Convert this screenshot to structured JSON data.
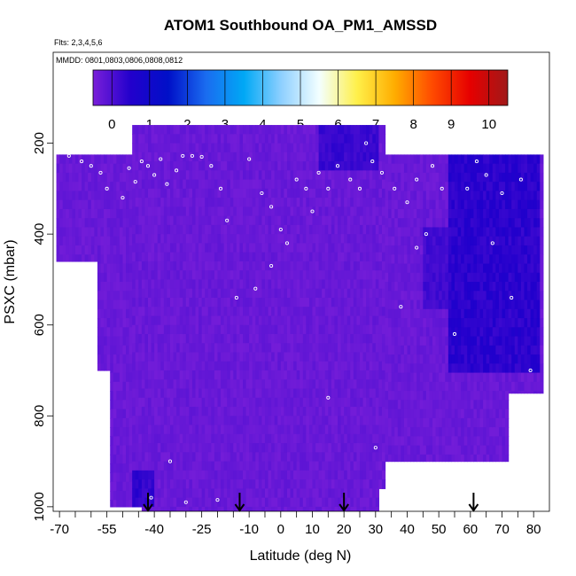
{
  "chart_data": {
    "type": "heatmap",
    "title": "ATOM1 Southbound OA_PM1_AMSSD",
    "subtitle_flights": "Flts: 2,3,4,5,6",
    "subtitle_dates": "MMDD: 0801,0803,0806,0808,0812",
    "xlabel": "Latitude (deg N)",
    "ylabel": "PSXC (mbar)",
    "xlim": [
      -72,
      85
    ],
    "ylim": [
      1010,
      0
    ],
    "x_ticks": [
      -70,
      -55,
      -40,
      -25,
      -10,
      0,
      10,
      20,
      30,
      40,
      50,
      60,
      70,
      80
    ],
    "x_tick_labels": [
      "-70",
      "-55",
      "-40",
      "-25",
      "-10",
      "0",
      "10",
      "20",
      "30",
      "40",
      "50",
      "60",
      "70",
      "80"
    ],
    "x_minor_ticks": [
      -65,
      -60,
      -50,
      -45,
      -35,
      -30,
      -20,
      -15,
      -5,
      5,
      15,
      25,
      35,
      45,
      55,
      65,
      75
    ],
    "y_ticks": [
      200,
      400,
      600,
      800,
      1000
    ],
    "y_tick_labels": [
      "200",
      "400",
      "600",
      "800",
      "1000"
    ],
    "colorbar": {
      "range": [
        0,
        11
      ],
      "tick_values": [
        0,
        1,
        2,
        3,
        4,
        5,
        6,
        7,
        8,
        9,
        10
      ],
      "tick_labels": [
        "0",
        "1",
        "2",
        "3",
        "4",
        "5",
        "6",
        "7",
        "8",
        "9",
        "10"
      ],
      "colors": [
        "#7a1fd9",
        "#2200cc",
        "#0010c8",
        "#1a6cf0",
        "#00a8f5",
        "#8fd0ff",
        "#f3ffff",
        "#fff04a",
        "#ffad00",
        "#ff4a00",
        "#e60000",
        "#a01919"
      ]
    },
    "arrows_latitude": [
      -42,
      -13,
      20,
      61
    ],
    "data_envelope": {
      "columns": [
        {
          "lat_from": -71,
          "lat_to": -58,
          "p_top": 225,
          "p_bottom": 460
        },
        {
          "lat_from": -58,
          "lat_to": -54,
          "p_top": 225,
          "p_bottom": 700
        },
        {
          "lat_from": -54,
          "lat_to": -47,
          "p_top": 225,
          "p_bottom": 1000
        },
        {
          "lat_from": -47,
          "lat_to": -44,
          "p_top": 160,
          "p_bottom": 1000
        },
        {
          "lat_from": -44,
          "lat_to": 31,
          "p_top": 160,
          "p_bottom": 1010
        },
        {
          "lat_from": 31,
          "lat_to": 33,
          "p_top": 160,
          "p_bottom": 960
        },
        {
          "lat_from": 33,
          "lat_to": 72,
          "p_top": 225,
          "p_bottom": 900
        },
        {
          "lat_from": 72,
          "lat_to": 83,
          "p_top": 225,
          "p_bottom": 750
        }
      ],
      "typical_value": 0.2,
      "enhanced_regions": [
        {
          "lat_from": 53,
          "lat_to": 82,
          "p_from": 230,
          "p_to": 700,
          "value": 1.1
        },
        {
          "lat_from": 45,
          "lat_to": 60,
          "p_from": 380,
          "p_to": 560,
          "value": 0.8
        },
        {
          "lat_from": 12,
          "lat_to": 31,
          "p_from": 160,
          "p_to": 260,
          "value": 0.9
        },
        {
          "lat_from": -47,
          "lat_to": -40,
          "p_from": 930,
          "p_to": 1000,
          "value": 1.0
        }
      ]
    },
    "sample_points": [
      [
        -67,
        228
      ],
      [
        -63,
        240
      ],
      [
        -60,
        250
      ],
      [
        -57,
        265
      ],
      [
        -55,
        300
      ],
      [
        -50,
        320
      ],
      [
        -48,
        255
      ],
      [
        -46,
        285
      ],
      [
        -44,
        240
      ],
      [
        -42,
        250
      ],
      [
        -40,
        270
      ],
      [
        -38,
        235
      ],
      [
        -36,
        290
      ],
      [
        -33,
        260
      ],
      [
        -31,
        228
      ],
      [
        -28,
        228
      ],
      [
        -25,
        230
      ],
      [
        -22,
        250
      ],
      [
        -19,
        300
      ],
      [
        -17,
        370
      ],
      [
        -14,
        540
      ],
      [
        -10,
        235
      ],
      [
        -6,
        310
      ],
      [
        -3,
        340
      ],
      [
        0,
        390
      ],
      [
        2,
        420
      ],
      [
        5,
        280
      ],
      [
        8,
        300
      ],
      [
        10,
        350
      ],
      [
        12,
        265
      ],
      [
        15,
        300
      ],
      [
        18,
        250
      ],
      [
        22,
        280
      ],
      [
        25,
        300
      ],
      [
        27,
        200
      ],
      [
        29,
        240
      ],
      [
        32,
        265
      ],
      [
        36,
        300
      ],
      [
        40,
        330
      ],
      [
        43,
        280
      ],
      [
        46,
        400
      ],
      [
        48,
        250
      ],
      [
        51,
        300
      ],
      [
        55,
        620
      ],
      [
        59,
        300
      ],
      [
        62,
        240
      ],
      [
        65,
        270
      ],
      [
        67,
        420
      ],
      [
        70,
        310
      ],
      [
        73,
        540
      ],
      [
        76,
        280
      ],
      [
        79,
        700
      ],
      [
        -41,
        980
      ],
      [
        -35,
        900
      ],
      [
        -30,
        990
      ],
      [
        -20,
        985
      ],
      [
        15,
        760
      ],
      [
        38,
        560
      ],
      [
        43,
        430
      ],
      [
        30,
        870
      ],
      [
        -8,
        520
      ],
      [
        -3,
        470
      ]
    ]
  }
}
